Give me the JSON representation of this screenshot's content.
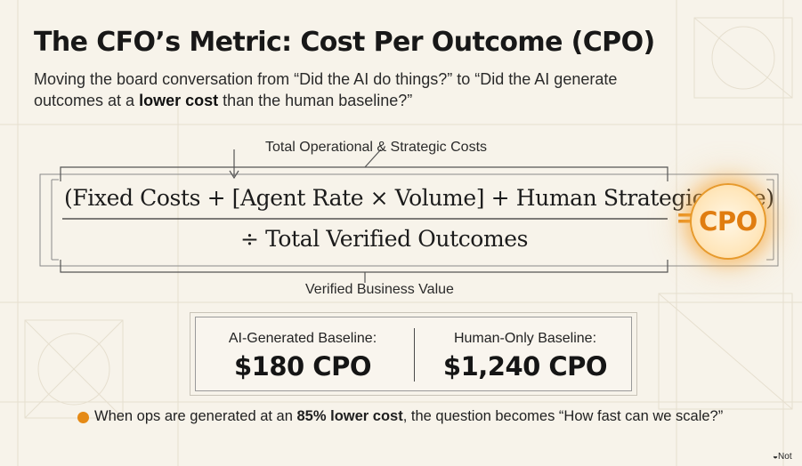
{
  "title": "The CFO’s Metric: Cost Per Outcome (CPO)",
  "subtitle": {
    "before": "Moving the board conversation from “Did the AI do things?” to “Did the AI generate outcomes at a ",
    "bold": "lower cost",
    "after": " than the human baseline?”"
  },
  "formula": {
    "top_label": "Total Operational & Strategic Costs",
    "numerator": "(Fixed Costs + [Agent Rate × Volume] + Human Strategic Time)",
    "divisor": "÷ Total Verified Outcomes",
    "bottom_label": "Verified Business Value",
    "equals": "=",
    "result": "CPO"
  },
  "baselines": {
    "ai": {
      "label": "AI-Generated Baseline:",
      "value": "$180 CPO"
    },
    "human": {
      "label": "Human-Only Baseline:",
      "value": "$1,240 CPO"
    }
  },
  "bullet": {
    "before": "When ops are generated at an ",
    "bold": "85% lower cost",
    "after": ", the question becomes “How fast can we scale?”"
  },
  "watermark": "Not",
  "colors": {
    "accent": "#e58a16",
    "background": "#f7f3ea",
    "text": "#1f1f1f"
  }
}
